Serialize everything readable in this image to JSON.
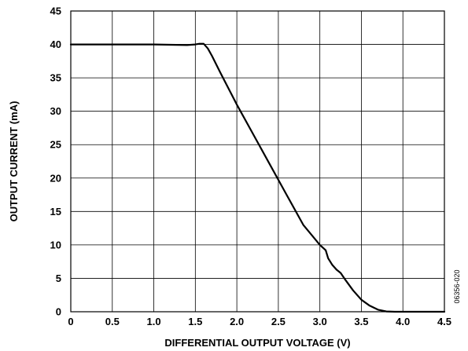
{
  "chart_data": {
    "type": "line",
    "xlabel": "DIFFERENTIAL OUTPUT VOLTAGE (V)",
    "ylabel": "OUTPUT CURRENT (mA)",
    "xlim": [
      0,
      4.5
    ],
    "ylim": [
      0,
      45
    ],
    "x_ticks": [
      0,
      0.5,
      1.0,
      1.5,
      2.0,
      2.5,
      3.0,
      3.5,
      4.0,
      4.5
    ],
    "x_tick_labels": [
      "0",
      "0.5",
      "1.0",
      "1.5",
      "2.0",
      "2.5",
      "3.0",
      "3.5",
      "4.0",
      "4.5"
    ],
    "y_ticks": [
      0,
      5,
      10,
      15,
      20,
      25,
      30,
      35,
      40,
      45
    ],
    "y_tick_labels": [
      "0",
      "5",
      "10",
      "15",
      "20",
      "25",
      "30",
      "35",
      "40",
      "45"
    ],
    "grid": true,
    "series": [
      {
        "x": [
          0,
          0.5,
          1.0,
          1.4,
          1.5,
          1.55,
          1.6,
          1.65,
          1.7,
          1.8,
          2.0,
          2.2,
          2.4,
          2.6,
          2.8,
          3.0,
          3.07,
          3.1,
          3.15,
          3.2,
          3.25,
          3.3,
          3.4,
          3.5,
          3.6,
          3.7,
          3.8,
          3.9,
          4.0,
          4.5
        ],
        "y": [
          40,
          40,
          40,
          39.9,
          40,
          40.1,
          40.1,
          39.4,
          38.3,
          35.8,
          31.0,
          26.5,
          22.0,
          17.5,
          13.0,
          10.0,
          9.2,
          8.0,
          7.0,
          6.3,
          5.8,
          4.9,
          3.2,
          1.8,
          0.9,
          0.3,
          0.05,
          0,
          0,
          0
        ],
        "color": "#000000"
      }
    ]
  },
  "figure_id": "06356-020"
}
